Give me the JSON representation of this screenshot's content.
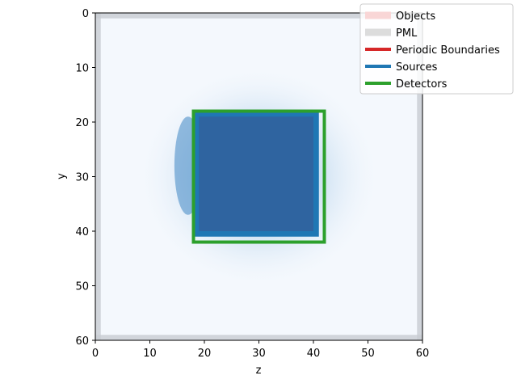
{
  "chart_data": {
    "type": "heatmap",
    "xlabel": "z",
    "ylabel": "y",
    "xlim": [
      0,
      60
    ],
    "ylim": [
      60,
      0
    ],
    "y_axis_inverted": true,
    "xticks": [
      0,
      10,
      20,
      30,
      40,
      50,
      60
    ],
    "yticks": [
      0,
      10,
      20,
      30,
      40,
      50,
      60
    ],
    "colormap": "Blues",
    "grid": false,
    "legend_placement": "top-right",
    "legend": [
      {
        "label": "Objects",
        "color": "#f9d6d6",
        "style": "band"
      },
      {
        "label": "PML",
        "color": "#dcdcdc",
        "style": "band"
      },
      {
        "label": "Periodic Boundaries",
        "color": "#d62728",
        "style": "line"
      },
      {
        "label": "Sources",
        "color": "#1f77b4",
        "style": "line"
      },
      {
        "label": "Detectors",
        "color": "#2ca02c",
        "style": "line"
      }
    ],
    "pml": {
      "thickness": 1,
      "color": "#c8ccd2"
    },
    "field": {
      "center_z": 30,
      "center_y": 30,
      "peak": 1.0
    },
    "object": {
      "z0": 18,
      "z1": 40,
      "y0": 19,
      "y1": 40,
      "color": "#2f64a0"
    },
    "source": {
      "z0": 18,
      "z1": 41,
      "y0": 18,
      "y1": 41,
      "color": "#1f77b4"
    },
    "detector": {
      "z0": 18,
      "z1": 42,
      "y0": 18,
      "y1": 42,
      "color": "#2ca02c"
    }
  }
}
